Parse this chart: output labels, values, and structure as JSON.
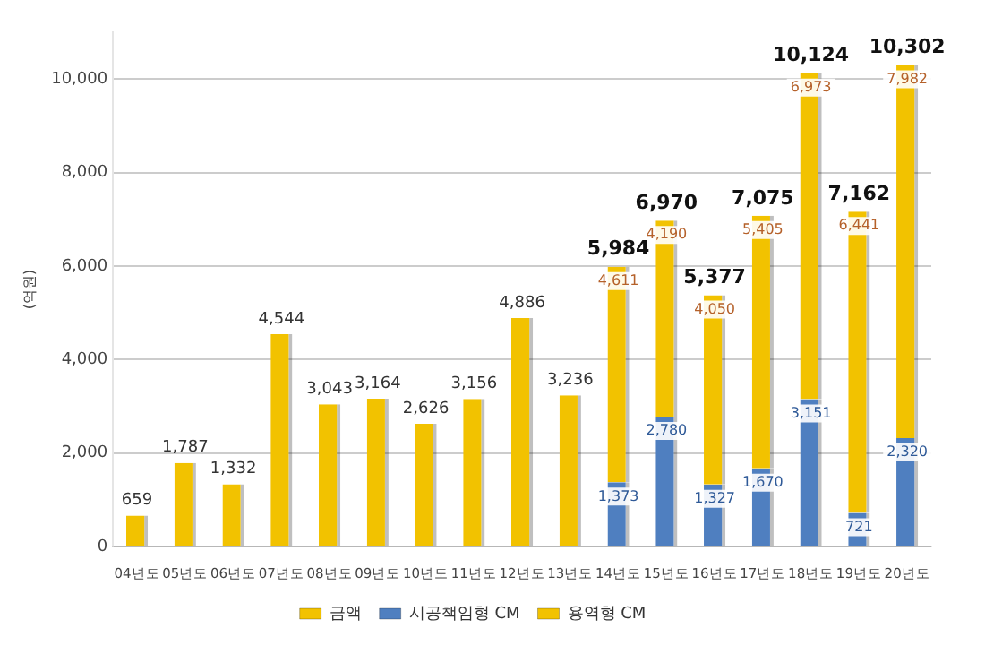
{
  "chart_data": {
    "type": "bar",
    "ylabel": "(억원)",
    "stacked": true,
    "categories": [
      "04년도",
      "05년도",
      "06년도",
      "07년도",
      "08년도",
      "09년도",
      "10년도",
      "11년도",
      "12년도",
      "13년도",
      "14년도",
      "15년도",
      "16년도",
      "17년도",
      "18년도",
      "19년도",
      "20년도"
    ],
    "series": [
      {
        "name": "금액",
        "color": "#f2c200",
        "values": [
          659,
          1787,
          1332,
          4544,
          3043,
          3164,
          2626,
          3156,
          4886,
          3236,
          null,
          null,
          null,
          null,
          null,
          null,
          null
        ],
        "value_labels": [
          "659",
          "1,787",
          "1,332",
          "4,544",
          "3,043",
          "3,164",
          "2,626",
          "3,156",
          "4,886",
          "3,236",
          null,
          null,
          null,
          null,
          null,
          null,
          null
        ]
      },
      {
        "name": "시공책임형 CM",
        "color": "#4f7fc0",
        "values": [
          null,
          null,
          null,
          null,
          null,
          null,
          null,
          null,
          null,
          null,
          1373,
          2780,
          1327,
          1670,
          3151,
          721,
          2320
        ],
        "value_labels": [
          null,
          null,
          null,
          null,
          null,
          null,
          null,
          null,
          null,
          null,
          "1,373",
          "2,780",
          "1,327",
          "1,670",
          "3,151",
          "721",
          "2,320"
        ]
      },
      {
        "name": "용역형 CM",
        "color": "#f2c200",
        "values": [
          null,
          null,
          null,
          null,
          null,
          null,
          null,
          null,
          null,
          null,
          4611,
          4190,
          4050,
          5405,
          6973,
          6441,
          7982
        ],
        "value_labels": [
          null,
          null,
          null,
          null,
          null,
          null,
          null,
          null,
          null,
          null,
          "4,611",
          "4,190",
          "4,050",
          "5,405",
          "6,973",
          "6,441",
          "7,982"
        ]
      }
    ],
    "totals": [
      null,
      null,
      null,
      null,
      null,
      null,
      null,
      null,
      null,
      null,
      "5,984",
      "6,970",
      "5,377",
      "7,075",
      "10,124",
      "7,162",
      "10,302"
    ],
    "ylim": [
      0,
      11000
    ],
    "yticks": [
      {
        "value": 0,
        "label": "0"
      },
      {
        "value": 2000,
        "label": "2,000"
      },
      {
        "value": 4000,
        "label": "4,000"
      },
      {
        "value": 6000,
        "label": "6,000"
      },
      {
        "value": 8000,
        "label": "8,000"
      },
      {
        "value": 10000,
        "label": "10,000"
      }
    ],
    "grid": "y",
    "legend": "bottom"
  }
}
